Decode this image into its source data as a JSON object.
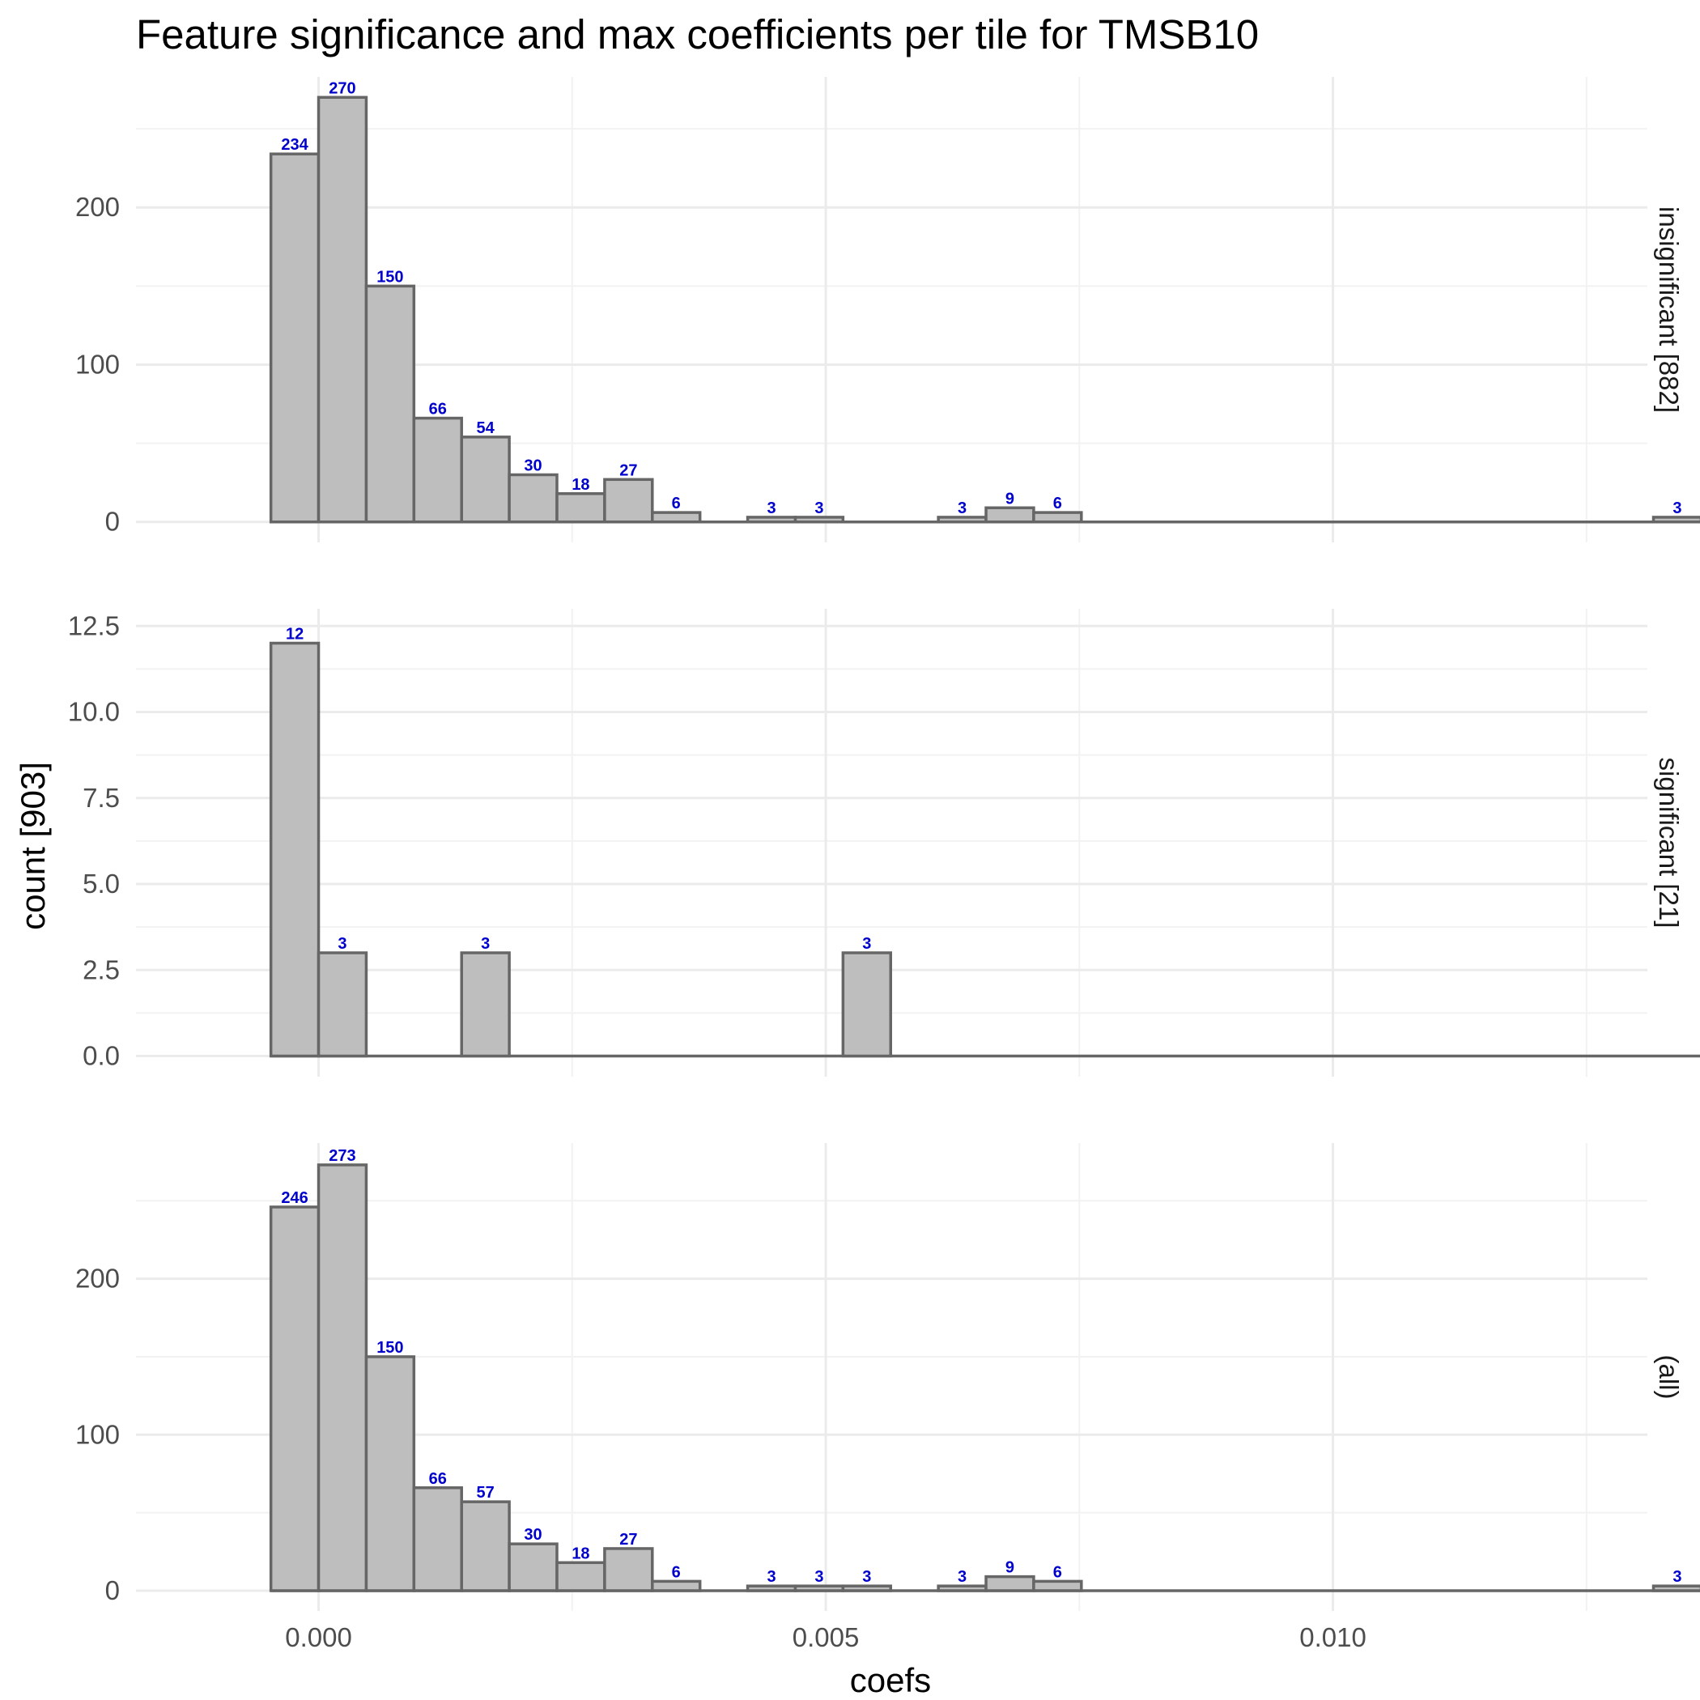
{
  "chart_data": {
    "type": "bar",
    "title": "Feature significance and max coefficients per tile for TMSB10",
    "xlabel": "coefs",
    "ylabel": "count [903]",
    "x_ticks": [
      "0.000",
      "0.005",
      "0.010"
    ],
    "x_tick_values": [
      0.0,
      0.005,
      0.01
    ],
    "xlim": [
      -0.0018,
      0.0131
    ],
    "bin_width": 0.00047,
    "bin_start": -0.00047,
    "facets": [
      {
        "label": "insignificant [882]",
        "ylim": [
          -13,
          283
        ],
        "y_ticks": [
          0,
          100,
          200
        ],
        "y_tick_labels": [
          "0",
          "100",
          "200"
        ],
        "counts": [
          234,
          270,
          150,
          66,
          54,
          30,
          18,
          27,
          6,
          0,
          3,
          3,
          0,
          0,
          3,
          9,
          6,
          0,
          0,
          0,
          0,
          0,
          0,
          0,
          0,
          0,
          0,
          0,
          0,
          3
        ],
        "labels": [
          "234",
          "270",
          "150",
          "66",
          "54",
          "30",
          "18",
          "27",
          "6",
          "",
          "3",
          "3",
          "",
          "",
          "3",
          "9",
          "6",
          "",
          "",
          "",
          "",
          "",
          "",
          "",
          "",
          "",
          "",
          "",
          "",
          "3"
        ]
      },
      {
        "label": "significant [21]",
        "ylim": [
          -0.6,
          13.0
        ],
        "y_ticks": [
          0,
          2.5,
          5.0,
          7.5,
          10.0,
          12.5
        ],
        "y_tick_labels": [
          "0.0",
          "2.5",
          "5.0",
          "7.5",
          "10.0",
          "12.5"
        ],
        "counts": [
          12,
          3,
          0,
          0,
          3,
          0,
          0,
          0,
          0,
          0,
          0,
          0,
          3,
          0,
          0,
          0,
          0,
          0,
          0,
          0,
          0,
          0,
          0,
          0,
          0,
          0,
          0,
          0,
          0,
          0
        ],
        "labels": [
          "12",
          "3",
          "",
          "",
          "3",
          "",
          "",
          "",
          "",
          "",
          "",
          "",
          "3",
          "",
          "",
          "",
          "",
          "",
          "",
          "",
          "",
          "",
          "",
          "",
          "",
          "",
          "",
          "",
          "",
          ""
        ]
      },
      {
        "label": "(all)",
        "ylim": [
          -13,
          287
        ],
        "y_ticks": [
          0,
          100,
          200
        ],
        "y_tick_labels": [
          "0",
          "100",
          "200"
        ],
        "counts": [
          246,
          273,
          150,
          66,
          57,
          30,
          18,
          27,
          6,
          0,
          3,
          3,
          3,
          0,
          3,
          9,
          6,
          0,
          0,
          0,
          0,
          0,
          0,
          0,
          0,
          0,
          0,
          0,
          0,
          3
        ],
        "labels": [
          "246",
          "273",
          "150",
          "66",
          "57",
          "30",
          "18",
          "27",
          "6",
          "",
          "3",
          "3",
          "3",
          "",
          "3",
          "9",
          "6",
          "",
          "",
          "",
          "",
          "",
          "",
          "",
          "",
          "",
          "",
          "",
          "",
          "3"
        ]
      }
    ],
    "colors": {
      "bar_fill": "#bebebe",
      "bar_outline": "#666666",
      "label": "#0000cc",
      "grid": "#ebebeb"
    },
    "grid": true,
    "legend": "none"
  }
}
